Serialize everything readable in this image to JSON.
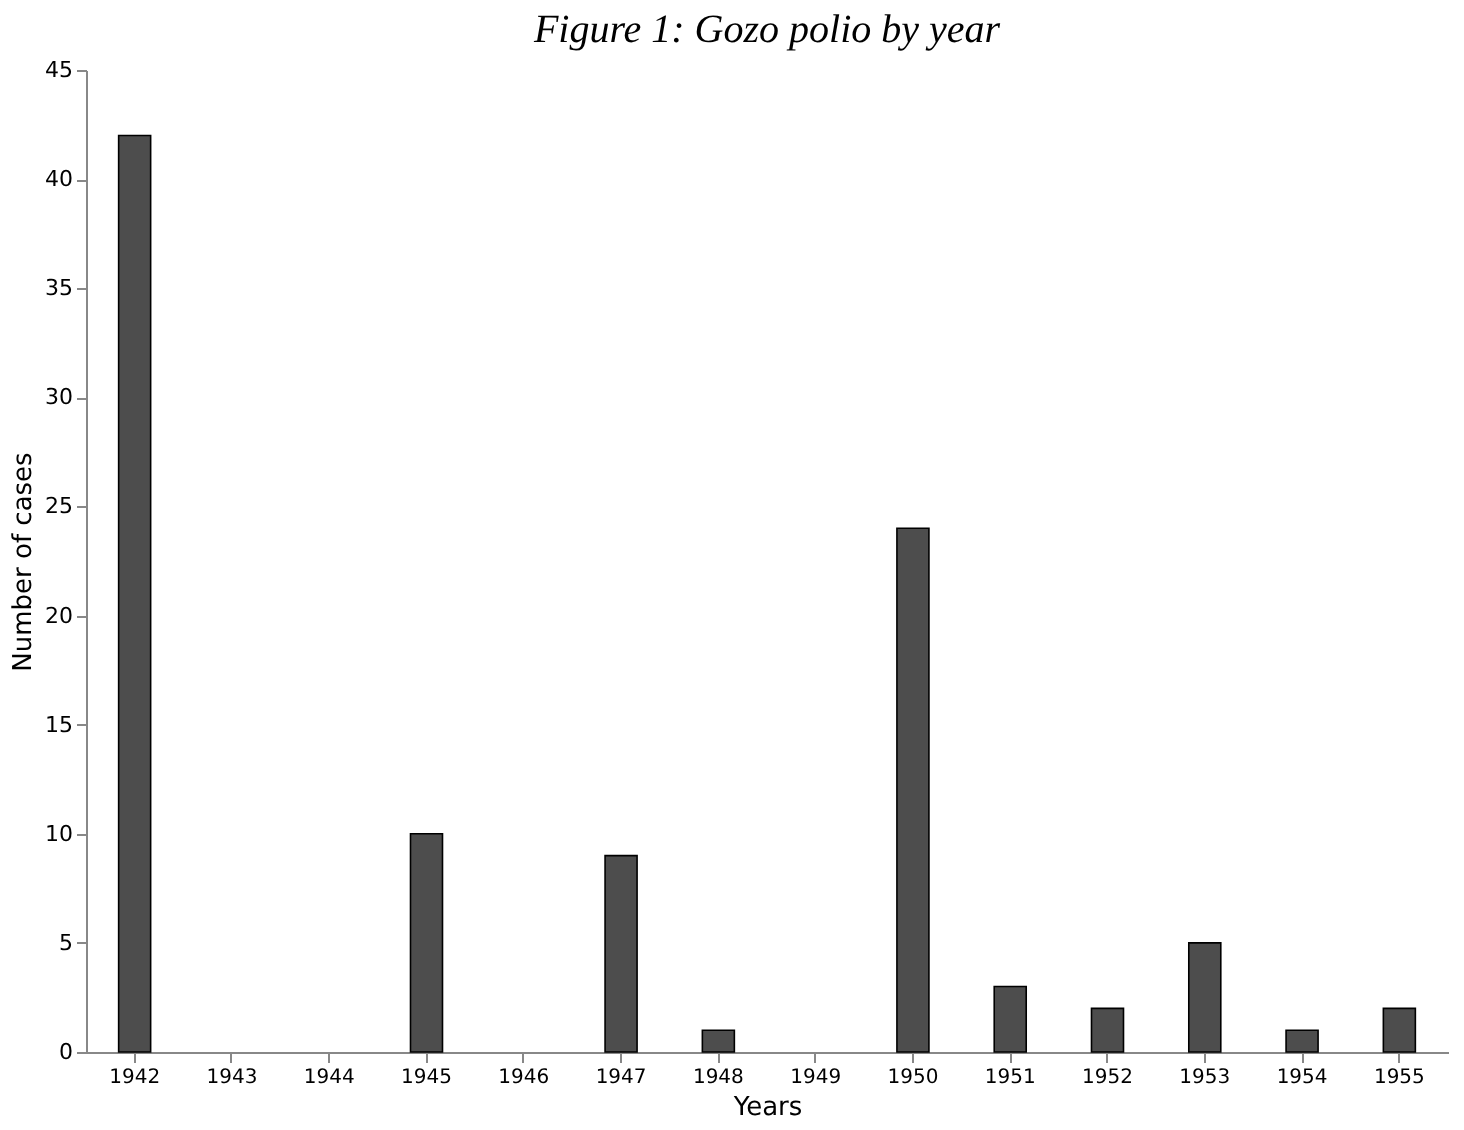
{
  "chart_data": {
    "type": "bar",
    "title": "Figure 1: Gozo polio by year",
    "xlabel": "Years",
    "ylabel": "Number of cases",
    "categories": [
      "1942",
      "1943",
      "1944",
      "1945",
      "1946",
      "1947",
      "1948",
      "1949",
      "1950",
      "1951",
      "1952",
      "1953",
      "1954",
      "1955"
    ],
    "values": [
      42,
      0,
      0,
      10,
      0,
      9,
      1,
      0,
      24,
      3,
      2,
      5,
      1,
      2
    ],
    "color": "#4d4d4d",
    "ylim": [
      0,
      45
    ],
    "yticks": [
      0,
      5,
      10,
      15,
      20,
      25,
      30,
      35,
      40,
      45
    ],
    "grid": false
  }
}
